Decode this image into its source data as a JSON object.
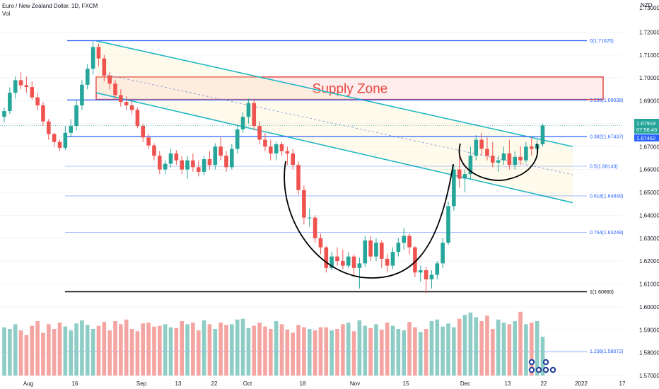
{
  "header": {
    "symbol_line": "Euro / New Zealand Dollar, 1D, FXCM",
    "volume_label": "Vol"
  },
  "currency": "NZD",
  "colors": {
    "up": "#26a69a",
    "down": "#ef5350",
    "vol_up": "#8ecdc6",
    "vol_down": "#f4a4a1",
    "fib": "#2962ff",
    "channel": "#22b8c4",
    "supply_zone": "#e53935",
    "cup": "#000000"
  },
  "annotations": {
    "supply_zone": "Supply Zone"
  },
  "chart_data": {
    "type": "candlestick",
    "title": "Euro / New Zealand Dollar, 1D, FXCM",
    "y_axis": {
      "range": [
        1.57,
        1.73
      ],
      "ticks": [
        "1.72000",
        "1.71000",
        "1.70000",
        "1.69000",
        "1.68000",
        "1.67000",
        "1.66000",
        "1.65000",
        "1.64000",
        "1.63000",
        "1.62000",
        "1.61000",
        "1.60000",
        "1.59000",
        "1.58000",
        "1.57000"
      ],
      "top_clipped": "1.73000"
    },
    "x_axis": {
      "labels": [
        "Aug",
        "16",
        "Sep",
        "13",
        "22",
        "Oct",
        "18",
        "Nov",
        "15",
        "Dec",
        "13",
        "22",
        "2022",
        "17"
      ]
    },
    "price_tags": [
      {
        "value": "1.67918",
        "sub": "07:56:43",
        "color": "#26a69a"
      },
      {
        "value": "1.67462",
        "color": "#2962ff"
      }
    ],
    "fib_levels": [
      {
        "label": "0(1.71625)",
        "value": 1.71625,
        "style": "solid-strong"
      },
      {
        "label": "0.236(1.69038)",
        "value": 1.69038,
        "style": "solid-strong"
      },
      {
        "label": "0.382(1.67437)",
        "value": 1.67437,
        "style": "solid-strong"
      },
      {
        "label": "0.5(1.66143)",
        "value": 1.66143,
        "style": "thin"
      },
      {
        "label": "0.618(1.64849)",
        "value": 1.64849,
        "style": "thin"
      },
      {
        "label": "0.764(1.63248)",
        "value": 1.63248,
        "style": "thin"
      },
      {
        "label": "1(1.60660)",
        "value": 1.6066,
        "style": "black"
      },
      {
        "label": "1.236(1.58072)",
        "value": 1.58072,
        "style": "thin"
      }
    ],
    "supply_zone": {
      "from": 1.6906,
      "to": 1.7004
    },
    "channel": {
      "upper": [
        {
          "i": 0,
          "p": 1.7162
        },
        {
          "i": 89,
          "p": 1.67
        }
      ],
      "lower": [
        {
          "i": 0,
          "p": 1.6935
        },
        {
          "i": 89,
          "p": 1.6455
        }
      ]
    },
    "candles": [
      {
        "o": 1.683,
        "h": 1.687,
        "l": 1.6805,
        "c": 1.6855
      },
      {
        "o": 1.6855,
        "h": 1.6958,
        "l": 1.6842,
        "c": 1.6935
      },
      {
        "o": 1.6935,
        "h": 1.7006,
        "l": 1.691,
        "c": 1.699
      },
      {
        "o": 1.699,
        "h": 1.7025,
        "l": 1.695,
        "c": 1.6968
      },
      {
        "o": 1.6968,
        "h": 1.7005,
        "l": 1.6935,
        "c": 1.696
      },
      {
        "o": 1.696,
        "h": 1.6985,
        "l": 1.6905,
        "c": 1.6915
      },
      {
        "o": 1.6915,
        "h": 1.6935,
        "l": 1.686,
        "c": 1.688
      },
      {
        "o": 1.688,
        "h": 1.6895,
        "l": 1.679,
        "c": 1.681
      },
      {
        "o": 1.681,
        "h": 1.682,
        "l": 1.673,
        "c": 1.6755
      },
      {
        "o": 1.6755,
        "h": 1.676,
        "l": 1.67,
        "c": 1.672
      },
      {
        "o": 1.672,
        "h": 1.673,
        "l": 1.668,
        "c": 1.6695
      },
      {
        "o": 1.6695,
        "h": 1.679,
        "l": 1.6685,
        "c": 1.676
      },
      {
        "o": 1.676,
        "h": 1.682,
        "l": 1.6745,
        "c": 1.679
      },
      {
        "o": 1.679,
        "h": 1.6905,
        "l": 1.677,
        "c": 1.688
      },
      {
        "o": 1.688,
        "h": 1.699,
        "l": 1.686,
        "c": 1.697
      },
      {
        "o": 1.697,
        "h": 1.706,
        "l": 1.695,
        "c": 1.704
      },
      {
        "o": 1.704,
        "h": 1.7162,
        "l": 1.7015,
        "c": 1.7135
      },
      {
        "o": 1.7135,
        "h": 1.715,
        "l": 1.705,
        "c": 1.7085
      },
      {
        "o": 1.7085,
        "h": 1.71,
        "l": 1.6985,
        "c": 1.701
      },
      {
        "o": 1.701,
        "h": 1.7025,
        "l": 1.695,
        "c": 1.6975
      },
      {
        "o": 1.6975,
        "h": 1.699,
        "l": 1.6905,
        "c": 1.6925
      },
      {
        "o": 1.6925,
        "h": 1.695,
        "l": 1.6875,
        "c": 1.6895
      },
      {
        "o": 1.6895,
        "h": 1.692,
        "l": 1.686,
        "c": 1.688
      },
      {
        "o": 1.688,
        "h": 1.69,
        "l": 1.684,
        "c": 1.686
      },
      {
        "o": 1.686,
        "h": 1.687,
        "l": 1.678,
        "c": 1.679
      },
      {
        "o": 1.679,
        "h": 1.68,
        "l": 1.672,
        "c": 1.674
      },
      {
        "o": 1.674,
        "h": 1.6755,
        "l": 1.669,
        "c": 1.6705
      },
      {
        "o": 1.6705,
        "h": 1.6715,
        "l": 1.664,
        "c": 1.666
      },
      {
        "o": 1.666,
        "h": 1.668,
        "l": 1.658,
        "c": 1.66
      },
      {
        "o": 1.66,
        "h": 1.664,
        "l": 1.658,
        "c": 1.6625
      },
      {
        "o": 1.6625,
        "h": 1.669,
        "l": 1.661,
        "c": 1.667
      },
      {
        "o": 1.667,
        "h": 1.6685,
        "l": 1.662,
        "c": 1.664
      },
      {
        "o": 1.664,
        "h": 1.666,
        "l": 1.658,
        "c": 1.66
      },
      {
        "o": 1.66,
        "h": 1.666,
        "l": 1.656,
        "c": 1.664
      },
      {
        "o": 1.664,
        "h": 1.667,
        "l": 1.659,
        "c": 1.661
      },
      {
        "o": 1.661,
        "h": 1.664,
        "l": 1.657,
        "c": 1.659
      },
      {
        "o": 1.659,
        "h": 1.666,
        "l": 1.6575,
        "c": 1.6645
      },
      {
        "o": 1.6645,
        "h": 1.668,
        "l": 1.66,
        "c": 1.662
      },
      {
        "o": 1.662,
        "h": 1.6715,
        "l": 1.66,
        "c": 1.67
      },
      {
        "o": 1.67,
        "h": 1.674,
        "l": 1.664,
        "c": 1.666
      },
      {
        "o": 1.666,
        "h": 1.668,
        "l": 1.659,
        "c": 1.661
      },
      {
        "o": 1.661,
        "h": 1.671,
        "l": 1.66,
        "c": 1.669
      },
      {
        "o": 1.669,
        "h": 1.679,
        "l": 1.667,
        "c": 1.6775
      },
      {
        "o": 1.6775,
        "h": 1.685,
        "l": 1.676,
        "c": 1.683
      },
      {
        "o": 1.683,
        "h": 1.691,
        "l": 1.68,
        "c": 1.689
      },
      {
        "o": 1.689,
        "h": 1.6905,
        "l": 1.677,
        "c": 1.679
      },
      {
        "o": 1.679,
        "h": 1.681,
        "l": 1.671,
        "c": 1.673
      },
      {
        "o": 1.673,
        "h": 1.676,
        "l": 1.668,
        "c": 1.67
      },
      {
        "o": 1.67,
        "h": 1.673,
        "l": 1.664,
        "c": 1.667
      },
      {
        "o": 1.667,
        "h": 1.672,
        "l": 1.664,
        "c": 1.671
      },
      {
        "o": 1.671,
        "h": 1.672,
        "l": 1.666,
        "c": 1.668
      },
      {
        "o": 1.668,
        "h": 1.67,
        "l": 1.662,
        "c": 1.667
      },
      {
        "o": 1.667,
        "h": 1.669,
        "l": 1.66,
        "c": 1.662
      },
      {
        "o": 1.662,
        "h": 1.6635,
        "l": 1.649,
        "c": 1.651
      },
      {
        "o": 1.651,
        "h": 1.653,
        "l": 1.636,
        "c": 1.639
      },
      {
        "o": 1.639,
        "h": 1.643,
        "l": 1.635,
        "c": 1.639
      },
      {
        "o": 1.639,
        "h": 1.64,
        "l": 1.628,
        "c": 1.63
      },
      {
        "o": 1.63,
        "h": 1.632,
        "l": 1.623,
        "c": 1.626
      },
      {
        "o": 1.626,
        "h": 1.6265,
        "l": 1.615,
        "c": 1.617
      },
      {
        "o": 1.617,
        "h": 1.624,
        "l": 1.616,
        "c": 1.622
      },
      {
        "o": 1.622,
        "h": 1.626,
        "l": 1.618,
        "c": 1.62
      },
      {
        "o": 1.62,
        "h": 1.625,
        "l": 1.6165,
        "c": 1.618
      },
      {
        "o": 1.618,
        "h": 1.624,
        "l": 1.617,
        "c": 1.622
      },
      {
        "o": 1.622,
        "h": 1.623,
        "l": 1.614,
        "c": 1.617
      },
      {
        "o": 1.617,
        "h": 1.6215,
        "l": 1.608,
        "c": 1.619
      },
      {
        "o": 1.619,
        "h": 1.631,
        "l": 1.6175,
        "c": 1.629
      },
      {
        "o": 1.629,
        "h": 1.631,
        "l": 1.62,
        "c": 1.622
      },
      {
        "o": 1.622,
        "h": 1.63,
        "l": 1.62,
        "c": 1.628
      },
      {
        "o": 1.628,
        "h": 1.629,
        "l": 1.617,
        "c": 1.621
      },
      {
        "o": 1.621,
        "h": 1.623,
        "l": 1.615,
        "c": 1.618
      },
      {
        "o": 1.618,
        "h": 1.626,
        "l": 1.6165,
        "c": 1.624
      },
      {
        "o": 1.624,
        "h": 1.63,
        "l": 1.622,
        "c": 1.628
      },
      {
        "o": 1.628,
        "h": 1.6345,
        "l": 1.625,
        "c": 1.631
      },
      {
        "o": 1.631,
        "h": 1.632,
        "l": 1.623,
        "c": 1.626
      },
      {
        "o": 1.626,
        "h": 1.6265,
        "l": 1.613,
        "c": 1.615
      },
      {
        "o": 1.615,
        "h": 1.618,
        "l": 1.611,
        "c": 1.616
      },
      {
        "o": 1.616,
        "h": 1.6175,
        "l": 1.606,
        "c": 1.612
      },
      {
        "o": 1.612,
        "h": 1.616,
        "l": 1.608,
        "c": 1.614
      },
      {
        "o": 1.614,
        "h": 1.62,
        "l": 1.612,
        "c": 1.619
      },
      {
        "o": 1.619,
        "h": 1.63,
        "l": 1.617,
        "c": 1.628
      },
      {
        "o": 1.628,
        "h": 1.646,
        "l": 1.627,
        "c": 1.644
      },
      {
        "o": 1.644,
        "h": 1.662,
        "l": 1.642,
        "c": 1.66
      },
      {
        "o": 1.66,
        "h": 1.667,
        "l": 1.652,
        "c": 1.656
      },
      {
        "o": 1.656,
        "h": 1.66,
        "l": 1.65,
        "c": 1.658
      },
      {
        "o": 1.658,
        "h": 1.67,
        "l": 1.656,
        "c": 1.666
      },
      {
        "o": 1.666,
        "h": 1.675,
        "l": 1.664,
        "c": 1.673
      },
      {
        "o": 1.673,
        "h": 1.676,
        "l": 1.666,
        "c": 1.669
      },
      {
        "o": 1.669,
        "h": 1.674,
        "l": 1.664,
        "c": 1.666
      },
      {
        "o": 1.666,
        "h": 1.672,
        "l": 1.661,
        "c": 1.663
      },
      {
        "o": 1.663,
        "h": 1.666,
        "l": 1.659,
        "c": 1.664
      },
      {
        "o": 1.664,
        "h": 1.67,
        "l": 1.662,
        "c": 1.667
      },
      {
        "o": 1.667,
        "h": 1.673,
        "l": 1.66,
        "c": 1.662
      },
      {
        "o": 1.662,
        "h": 1.668,
        "l": 1.66,
        "c": 1.6655
      },
      {
        "o": 1.6655,
        "h": 1.67,
        "l": 1.662,
        "c": 1.664
      },
      {
        "o": 1.664,
        "h": 1.672,
        "l": 1.663,
        "c": 1.67
      },
      {
        "o": 1.67,
        "h": 1.674,
        "l": 1.666,
        "c": 1.669
      },
      {
        "o": 1.669,
        "h": 1.673,
        "l": 1.665,
        "c": 1.671
      },
      {
        "o": 1.671,
        "h": 1.68,
        "l": 1.67,
        "c": 1.6792
      }
    ],
    "volume": [
      62,
      60,
      66,
      58,
      52,
      64,
      70,
      55,
      66,
      60,
      68,
      63,
      58,
      67,
      71,
      65,
      60,
      64,
      69,
      58,
      70,
      66,
      72,
      60,
      57,
      67,
      68,
      63,
      64,
      66,
      62,
      61,
      70,
      66,
      68,
      58,
      71,
      66,
      60,
      68,
      65,
      66,
      72,
      73,
      61,
      64,
      68,
      63,
      60,
      70,
      66,
      59,
      55,
      65,
      62,
      60,
      58,
      62,
      62,
      58,
      60,
      66,
      68,
      57,
      71,
      64,
      61,
      66,
      59,
      68,
      64,
      60,
      58,
      69,
      62,
      56,
      60,
      70,
      72,
      63,
      67,
      62,
      73,
      78,
      81,
      75,
      70,
      77,
      60,
      72,
      68,
      66,
      70,
      82,
      66,
      68,
      70,
      50
    ],
    "volume_range_max": 100
  }
}
